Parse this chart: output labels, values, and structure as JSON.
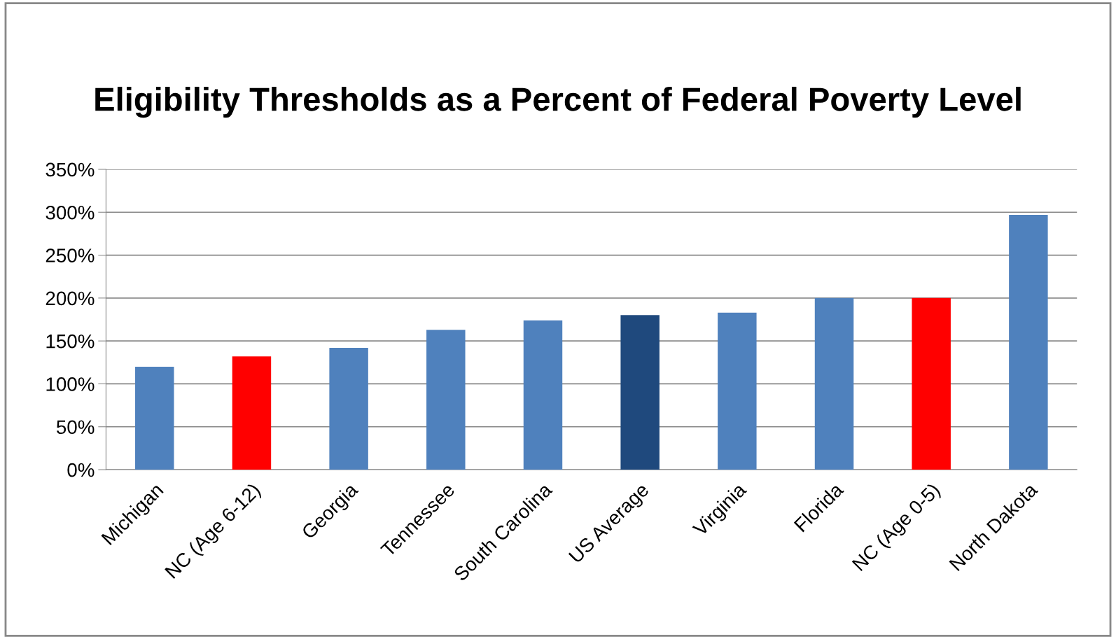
{
  "chart_data": {
    "type": "bar",
    "title": "Eligibility Thresholds as a Percent of Federal Poverty Level",
    "categories": [
      "Michigan",
      "NC (Age 6-12)",
      "Georgia",
      "Tennessee",
      "South Carolina",
      "US Average",
      "Virginia",
      "Florida",
      "NC (Age 0-5)",
      "North Dakota"
    ],
    "values": [
      120,
      132,
      142,
      163,
      174,
      180,
      183,
      200,
      200,
      297
    ],
    "colors": [
      "#4f81bd",
      "#ff0000",
      "#4f81bd",
      "#4f81bd",
      "#4f81bd",
      "#1f497d",
      "#4f81bd",
      "#4f81bd",
      "#ff0000",
      "#4f81bd"
    ],
    "ylim": [
      0,
      350
    ],
    "yticks": [
      {
        "value": 0,
        "label": "0%"
      },
      {
        "value": 50,
        "label": "50%"
      },
      {
        "value": 100,
        "label": "100%"
      },
      {
        "value": 150,
        "label": "150%"
      },
      {
        "value": 200,
        "label": "200%"
      },
      {
        "value": 250,
        "label": "250%"
      },
      {
        "value": 300,
        "label": "300%"
      },
      {
        "value": 350,
        "label": "350%"
      }
    ],
    "grid": "y"
  }
}
